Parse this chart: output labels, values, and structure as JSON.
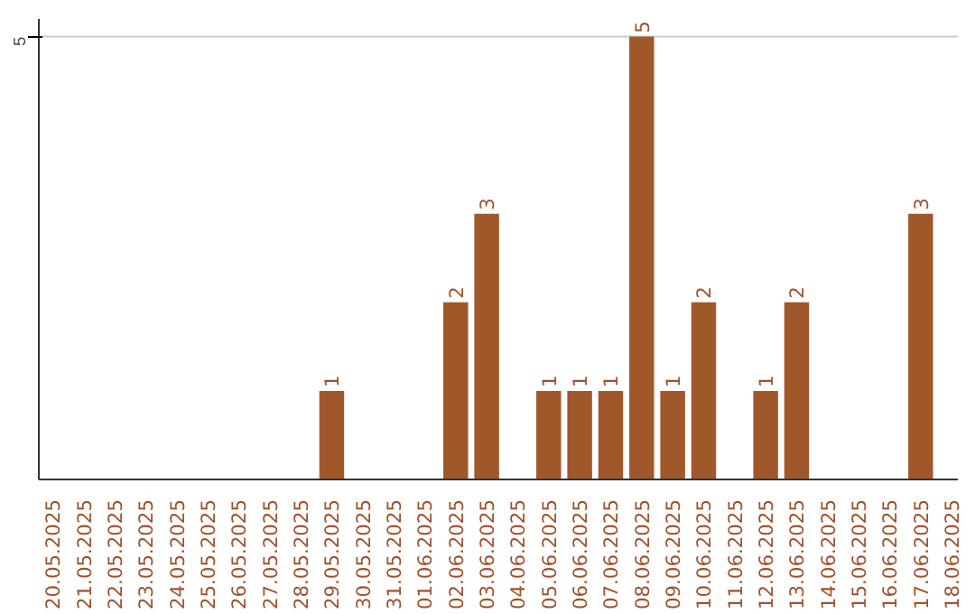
{
  "chart_data": {
    "type": "bar",
    "categories": [
      "20.05.2025",
      "21.05.2025",
      "22.05.2025",
      "23.05.2025",
      "24.05.2025",
      "25.05.2025",
      "26.05.2025",
      "27.05.2025",
      "28.05.2025",
      "29.05.2025",
      "30.05.2025",
      "31.05.2025",
      "01.06.2025",
      "02.06.2025",
      "03.06.2025",
      "04.06.2025",
      "05.06.2025",
      "06.06.2025",
      "07.06.2025",
      "08.06.2025",
      "09.06.2025",
      "10.06.2025",
      "11.06.2025",
      "12.06.2025",
      "13.06.2025",
      "14.06.2025",
      "15.06.2025",
      "16.06.2025",
      "17.06.2025",
      "18.06.2025"
    ],
    "values": [
      0,
      0,
      0,
      0,
      0,
      0,
      0,
      0,
      0,
      1,
      0,
      0,
      0,
      2,
      3,
      0,
      1,
      1,
      1,
      5,
      1,
      2,
      0,
      1,
      2,
      0,
      0,
      0,
      3,
      0
    ],
    "value_labels": [
      null,
      null,
      null,
      null,
      null,
      null,
      null,
      null,
      null,
      "1",
      null,
      null,
      null,
      "2",
      "3",
      null,
      "1",
      "1",
      "1",
      "5",
      "1",
      "2",
      null,
      "1",
      "2",
      null,
      null,
      null,
      "3",
      null
    ],
    "color": "#a0582a",
    "ylim": [
      0,
      5.2
    ],
    "yticks": [
      5
    ],
    "grid": "y"
  }
}
